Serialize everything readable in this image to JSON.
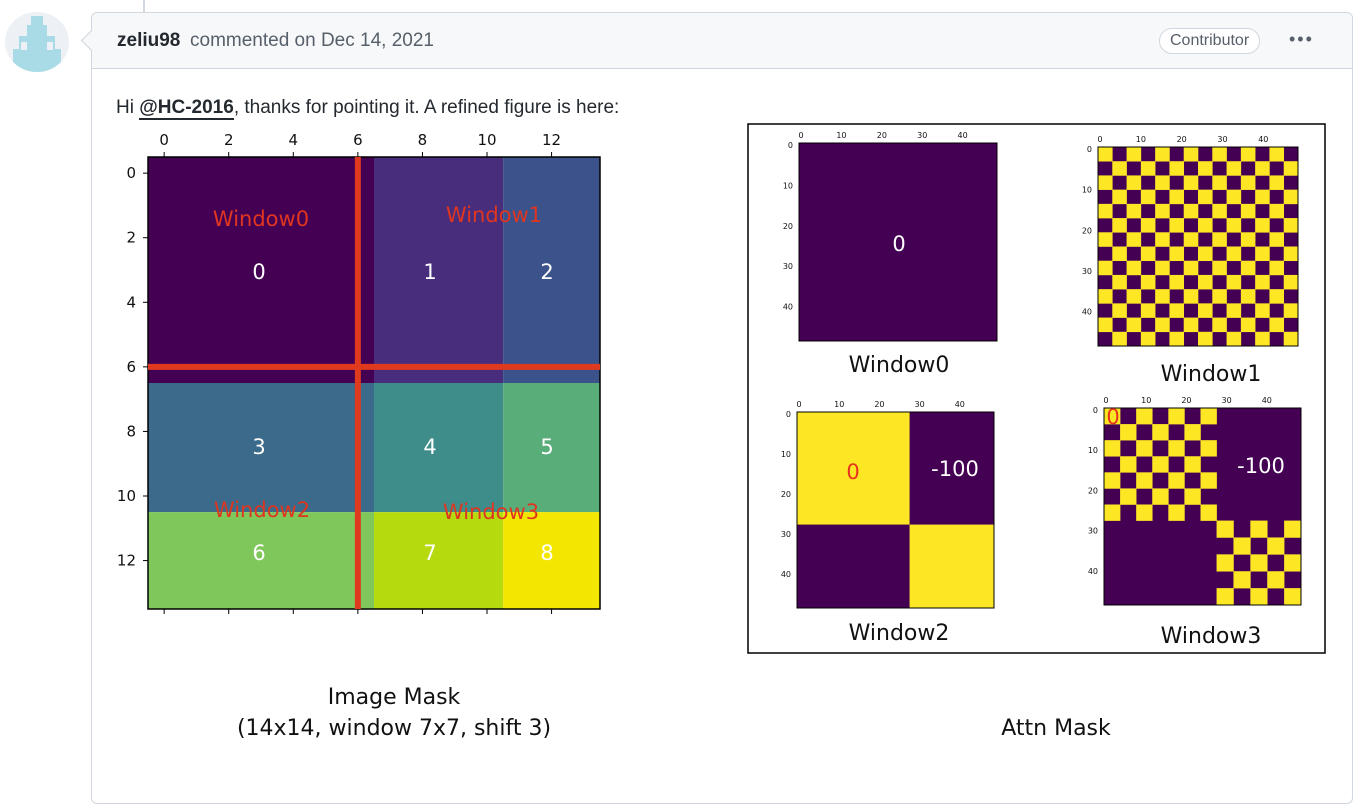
{
  "author": "zeliu98",
  "action": "commented on Dec 14, 2021",
  "badge": "Contributor",
  "menu_icon": "kebab-horizontal-icon",
  "body": {
    "prefix": "Hi ",
    "mention": "@HC-2016",
    "suffix": ", thanks for pointing it. A refined figure is here:"
  },
  "image_mask": {
    "ticks": [
      "0",
      "2",
      "4",
      "6",
      "8",
      "10",
      "12"
    ],
    "window_labels": [
      "Window0",
      "Window1",
      "Window2",
      "Window3"
    ],
    "region_labels": [
      "0",
      "1",
      "2",
      "3",
      "4",
      "5",
      "6",
      "7",
      "8"
    ],
    "caption_line1": "Image Mask",
    "caption_line2": "(14x14, window 7x7, shift 3)",
    "colors": [
      "#440154",
      "#472d7b",
      "#3b528b",
      "#3b6a8a",
      "#3e8d8b",
      "#58ad78",
      "#7fc75a",
      "#b5db0f",
      "#f3e600"
    ]
  },
  "attn_mask": {
    "ticks": [
      "0",
      "10",
      "20",
      "30",
      "40"
    ],
    "windows": [
      {
        "name": "Window0",
        "labels": [
          "0"
        ]
      },
      {
        "name": "Window1",
        "labels": []
      },
      {
        "name": "Window2",
        "labels": [
          "0",
          "-100"
        ]
      },
      {
        "name": "Window3",
        "labels": [
          "0",
          "-100"
        ]
      }
    ],
    "caption": "Attn Mask",
    "colors": {
      "purple": "#440154",
      "yellow": "#fde725",
      "label_red": "#e8331f"
    }
  }
}
